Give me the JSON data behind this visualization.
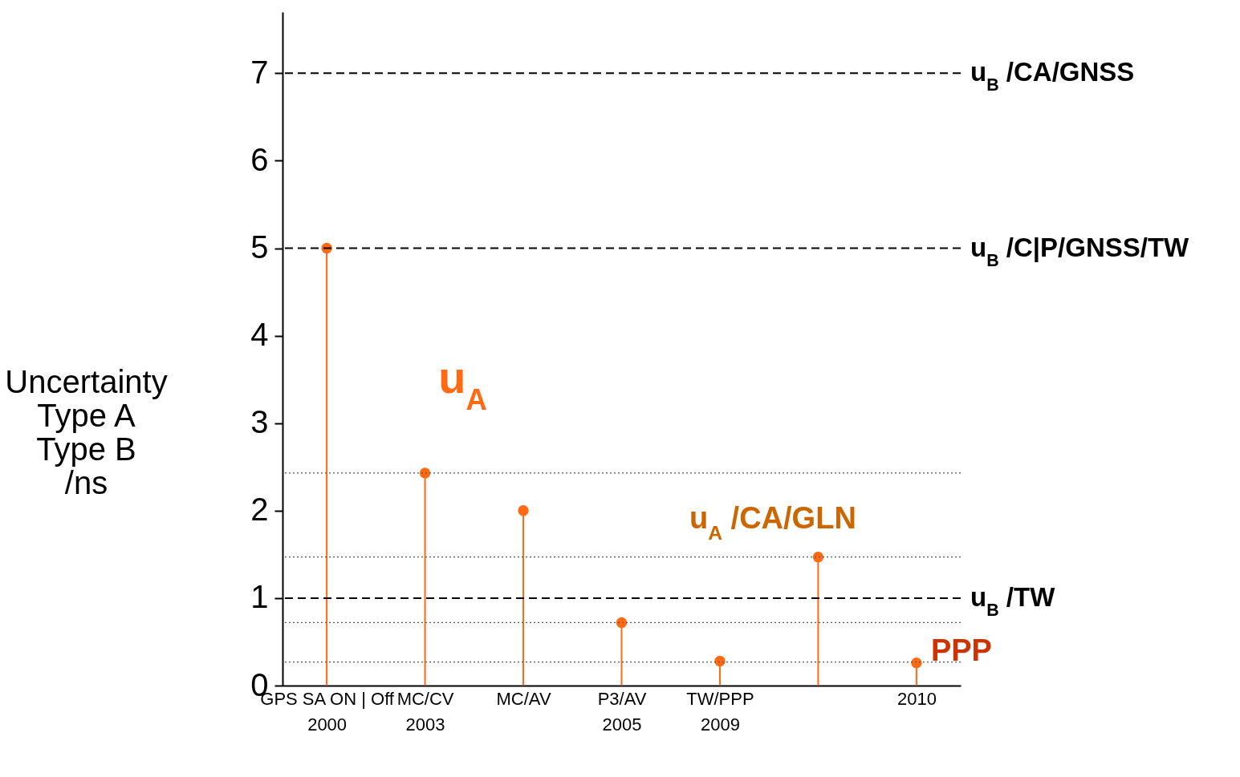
{
  "chart_data": {
    "type": "lollipop",
    "ylabel": "Uncertainty\nType A\nType B\n/ns",
    "categories": [
      "GPS SA ON | Off\n2000",
      "MC/CV\n2003",
      "MC/AV",
      "P3/AV\n2005",
      "TW/PPP\n2009",
      null,
      "2010"
    ],
    "series": [
      {
        "name": "u$_{A}$",
        "color": "#ff6a13",
        "values": [
          5.0,
          2.43,
          2.0,
          0.72,
          0.28,
          1.47,
          0.26
        ]
      }
    ],
    "ylim": [
      0,
      7.7
    ],
    "yticks": [
      0,
      1,
      2,
      3,
      4,
      5,
      6,
      7
    ],
    "grid": false,
    "marker": "circle",
    "ref_lines": [
      {
        "axis": "y",
        "value": 7,
        "label": "u$_{B}$ /CA/GNSS",
        "line_style": "dashed",
        "color": "#000000"
      },
      {
        "axis": "y",
        "value": 5,
        "label": "u$_{B}$ /C|P/GNSS/TW",
        "line_style": "dashed",
        "color": "#000000"
      },
      {
        "axis": "y",
        "value": 1,
        "label": "u$_{B}$ /TW",
        "line_style": "dashed",
        "color": "#000000"
      },
      {
        "axis": "y",
        "value": 2.43,
        "line_style": "dotted",
        "color": "#555555"
      },
      {
        "axis": "y",
        "value": 1.47,
        "line_style": "dotted",
        "color": "#555555"
      },
      {
        "axis": "y",
        "value": 0.72,
        "line_style": "dotted",
        "color": "#555555"
      },
      {
        "axis": "y",
        "value": 0.27,
        "line_style": "dotted",
        "color": "#555555"
      }
    ],
    "annotations": [
      "u$_{A}$ /CA/GLN",
      {
        "text": "PPP",
        "x": "2010",
        "y": 0.26
      }
    ]
  }
}
